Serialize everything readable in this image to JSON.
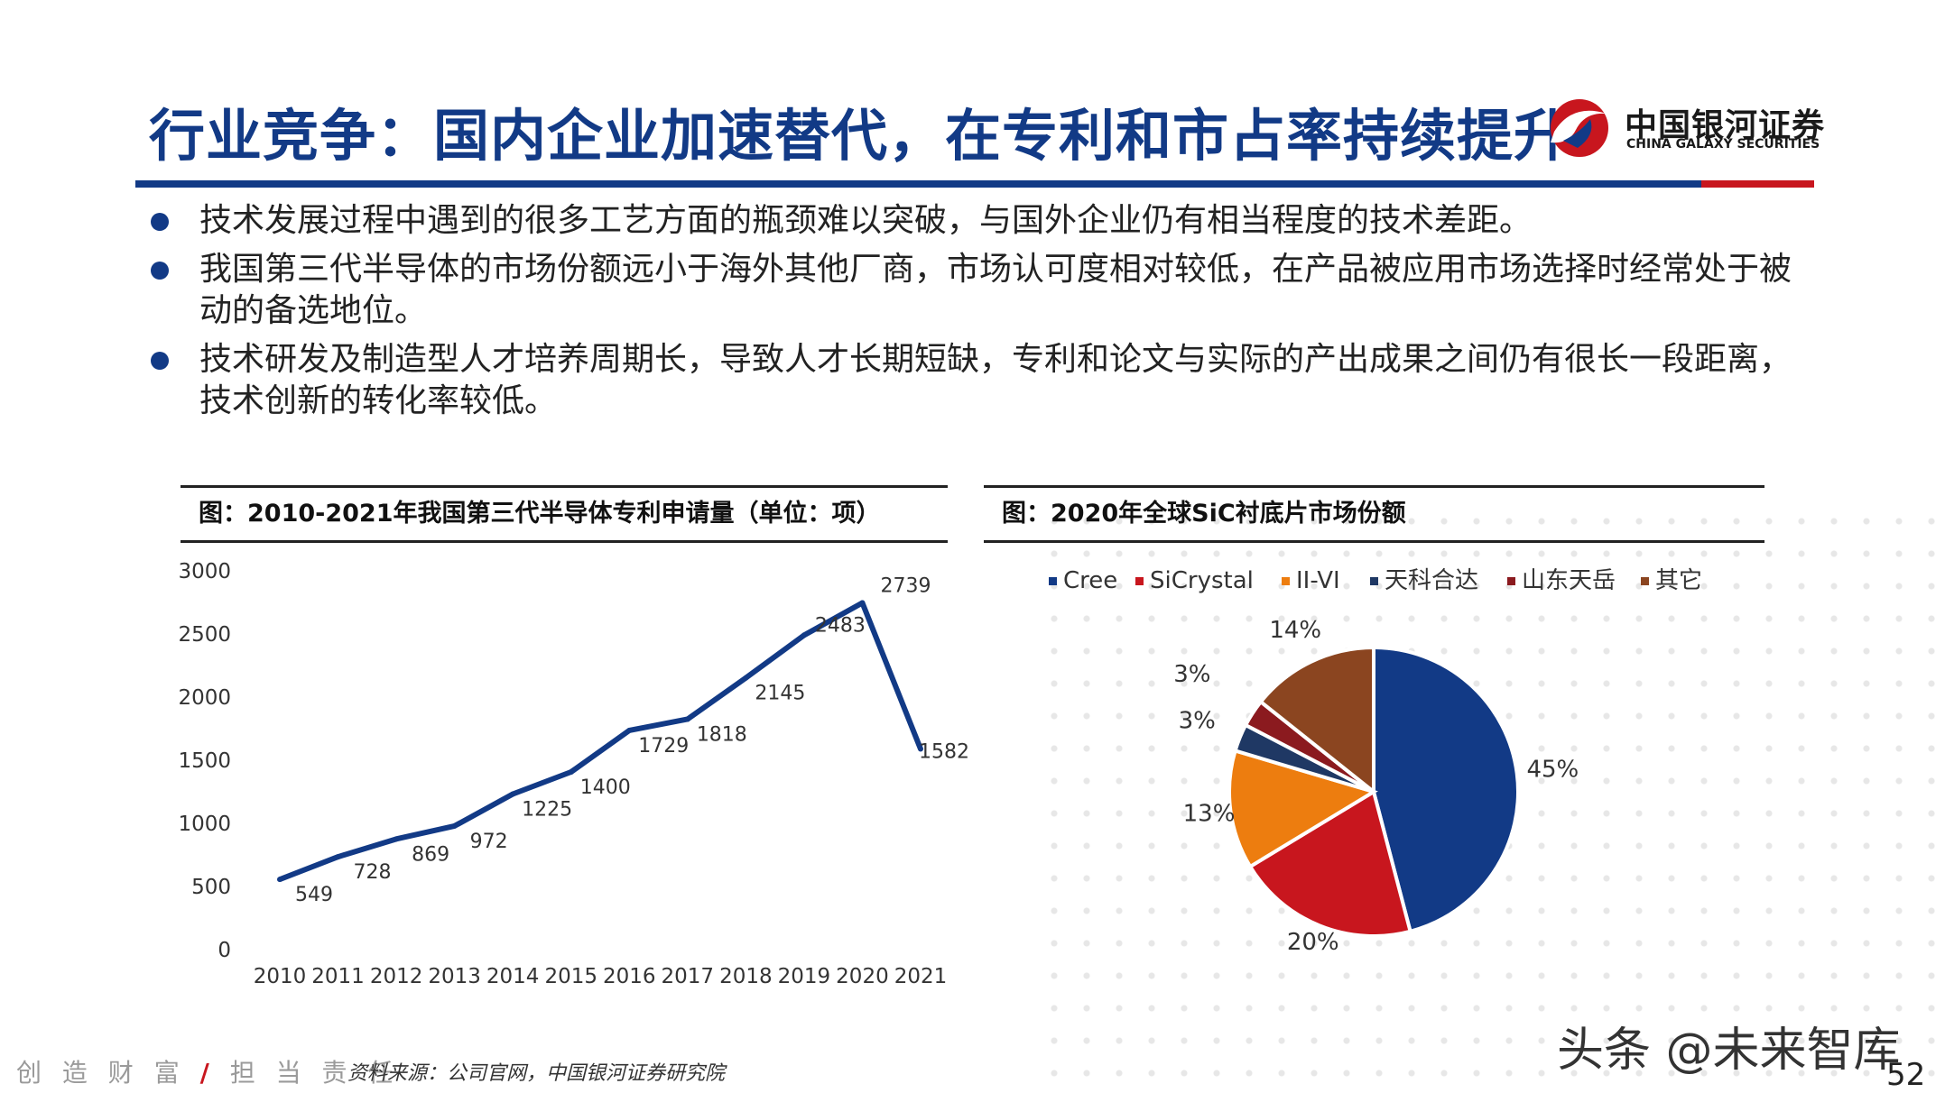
{
  "title": "行业竞争：国内企业加速替代，在专利和市占率持续提升",
  "logo": {
    "cn": "中国银河证券",
    "en": "CHINA GALAXY SECURITIES"
  },
  "bullets": [
    "技术发展过程中遇到的很多工艺方面的瓶颈难以突破，与国外企业仍有相当程度的技术差距。",
    "我国第三代半导体的市场份额远小于海外其他厂商，市场认可度相对较低，在产品被应用市场选择时经常处于被动的备选地位。",
    "技术研发及制造型人才培养周期长，导致人才长期短缺，专利和论文与实际的产出成果之间仍有很长一段距离，技术创新的转化率较低。"
  ],
  "footer": {
    "left_a": "创 造 财 富",
    "slash": "/",
    "left_b": "担 当 责 任",
    "source": "资料来源：公司官网，中国银河证券研究院",
    "page": "52"
  },
  "watermark": "头条 @未来智库",
  "colors": {
    "brand_blue": "#123a86",
    "brand_red": "#c8161e",
    "line": "#123a86"
  },
  "chart_data": [
    {
      "type": "line",
      "title": "图：2010-2021年我国第三代半导体专利申请量（单位：项）",
      "x": [
        "2010",
        "2011",
        "2012",
        "2013",
        "2014",
        "2015",
        "2016",
        "2017",
        "2018",
        "2019",
        "2020",
        "2021"
      ],
      "series": [
        {
          "values": [
            549,
            728,
            869,
            972,
            1225,
            1400,
            1729,
            1818,
            2145,
            2483,
            2739,
            1582
          ]
        }
      ],
      "ylim": [
        0,
        3000
      ],
      "yticks": [
        0,
        500,
        1000,
        1500,
        2000,
        2500,
        3000
      ],
      "grid": false
    },
    {
      "type": "pie",
      "title": "图：2020年全球SiC衬底片市场份额",
      "legend_position": "top",
      "slices": [
        {
          "name": "Cree",
          "value": 45,
          "label": "45%",
          "color": "#123a86"
        },
        {
          "name": "SiCrystal",
          "value": 20,
          "label": "20%",
          "color": "#c8161e"
        },
        {
          "name": "II-VI",
          "value": 13,
          "label": "13%",
          "color": "#ed7d0f"
        },
        {
          "name": "天科合达",
          "value": 3,
          "label": "3%",
          "color": "#1f3864"
        },
        {
          "name": "山东天岳",
          "value": 3,
          "label": "3%",
          "color": "#8b1a1f"
        },
        {
          "name": "其它",
          "value": 14,
          "label": "14%",
          "color": "#8b4520"
        }
      ]
    }
  ]
}
